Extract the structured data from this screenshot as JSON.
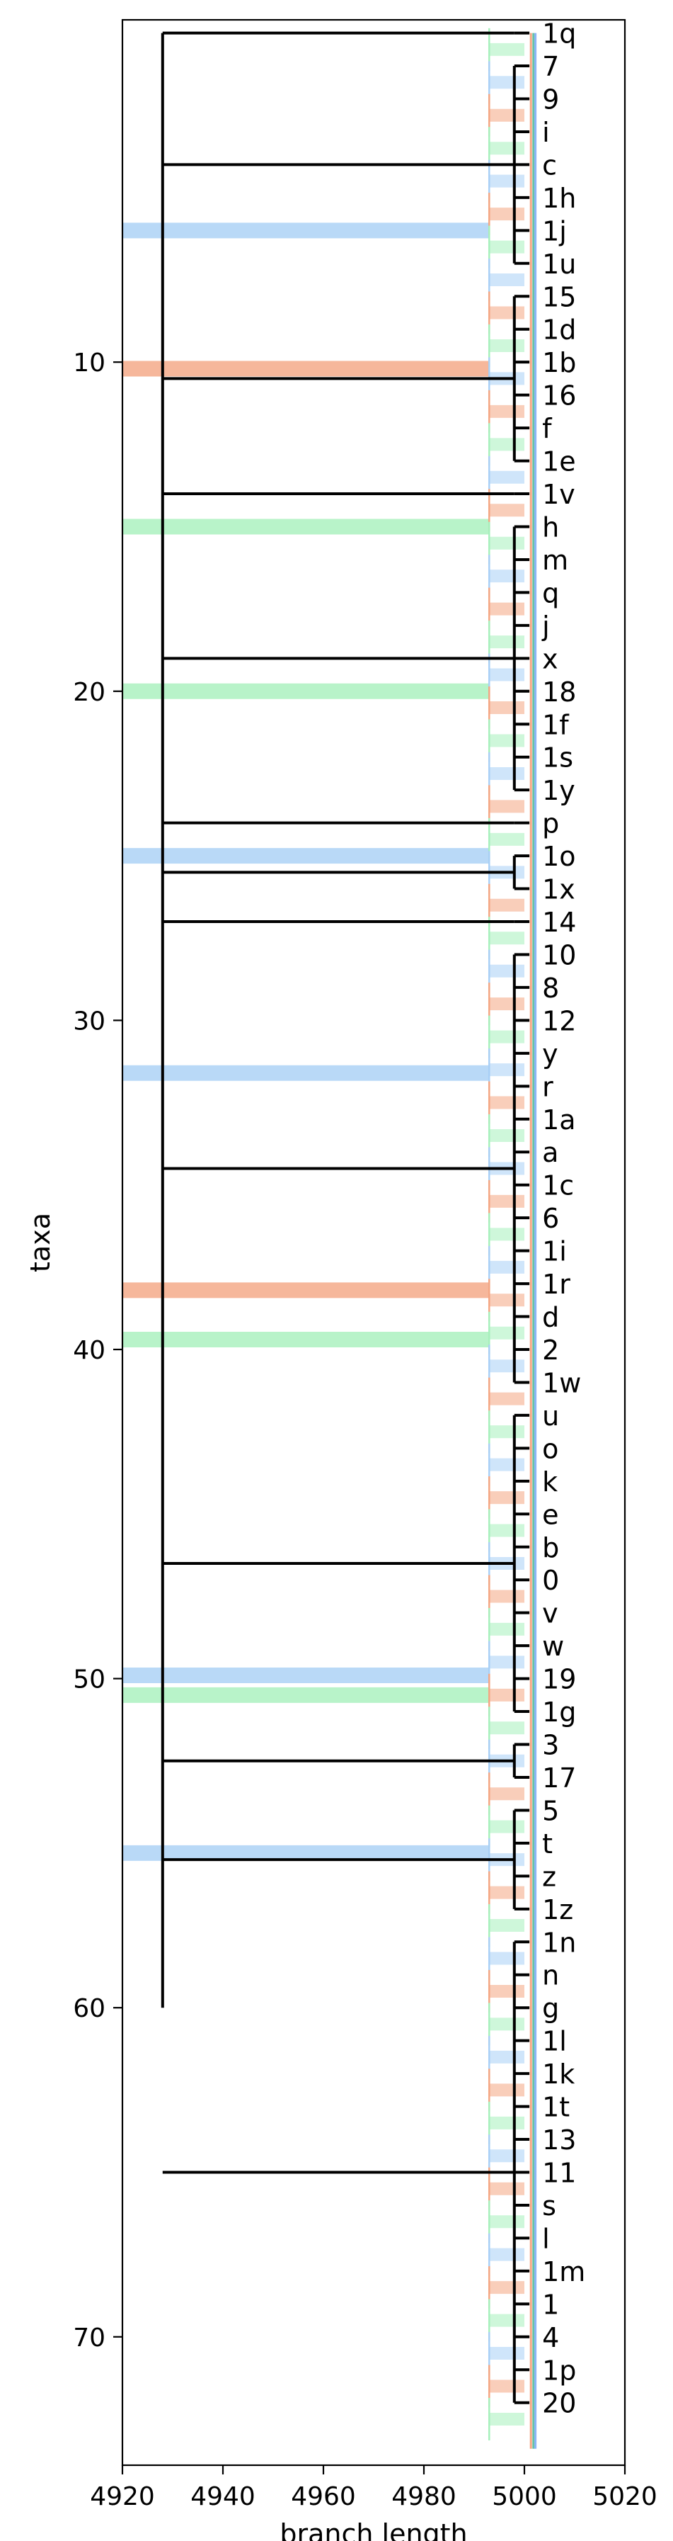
{
  "chart_data": {
    "type": "tree",
    "xlabel": "branch length",
    "ylabel": "taxa",
    "xlim": [
      4920,
      5020
    ],
    "ylim": [
      73.9,
      -0.4
    ],
    "x_ticks": [
      4920,
      4940,
      4960,
      4980,
      5000,
      5020
    ],
    "y_ticks": [
      10,
      20,
      30,
      40,
      50,
      60,
      70
    ],
    "root_x": 4928,
    "tip_x": 5001,
    "taxa": [
      "1q",
      "7",
      "9",
      "i",
      "c",
      "1h",
      "1j",
      "1u",
      "15",
      "1d",
      "1b",
      "16",
      "f",
      "1e",
      "1v",
      "h",
      "m",
      "q",
      "j",
      "x",
      "18",
      "1f",
      "1s",
      "1y",
      "p",
      "1o",
      "1x",
      "14",
      "10",
      "8",
      "12",
      "y",
      "r",
      "1a",
      "a",
      "1c",
      "6",
      "1i",
      "1r",
      "d",
      "2",
      "1w",
      "u",
      "o",
      "k",
      "e",
      "b",
      "0",
      "v",
      "w",
      "19",
      "1g",
      "3",
      "17",
      "5",
      "t",
      "z",
      "1z",
      "1n",
      "n",
      "g",
      "1l",
      "1k",
      "1t",
      "13",
      "11",
      "s",
      "l",
      "1m",
      "1",
      "4",
      "1p",
      "20"
    ],
    "error_colors": {
      "orange": "#f4a582",
      "green": "#a6f0bc",
      "blue": "#a8cff5"
    },
    "colors": {
      "branch": "#000000",
      "tip_line_1": "#66c2a5",
      "tip_line_2": "#f4a582",
      "tip_line_3": "#8ab4f8"
    }
  }
}
